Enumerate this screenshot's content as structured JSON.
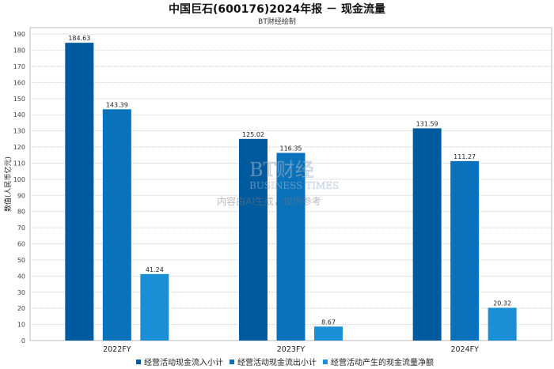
{
  "chart_data": {
    "type": "bar",
    "title": "中国巨石(600176)2024年报 － 现金流量",
    "subtitle": "BT财经绘制",
    "xlabel": "",
    "ylabel": "数值(人民币亿元)",
    "ylim": [
      0,
      194
    ],
    "yticks": [
      0,
      10,
      20,
      30,
      40,
      50,
      60,
      70,
      80,
      90,
      100,
      110,
      120,
      130,
      140,
      150,
      160,
      170,
      180,
      190
    ],
    "grid": true,
    "legend_position": "bottom",
    "categories": [
      "2022FY",
      "2023FY",
      "2024FY"
    ],
    "series": [
      {
        "name": "经营活动现金流入小计",
        "color": "#005a9e",
        "values": [
          184.63,
          125.02,
          131.59
        ]
      },
      {
        "name": "经营活动现金流出小计",
        "color": "#0a72ba",
        "values": [
          143.39,
          116.35,
          111.27
        ]
      },
      {
        "name": "经营活动产生的现金流量净额",
        "color": "#1a8fd6",
        "values": [
          41.24,
          8.67,
          20.32
        ]
      }
    ],
    "value_labels": [
      [
        "184.63",
        "125.02",
        "131.59"
      ],
      [
        "143.39",
        "116.35",
        "111.27"
      ],
      [
        "41.24",
        "8.67",
        "20.32"
      ]
    ]
  },
  "watermark": {
    "brand": "BT财经",
    "sub": "BUSINESS TIMES",
    "note": "内容由AI生成，仅供参考"
  }
}
